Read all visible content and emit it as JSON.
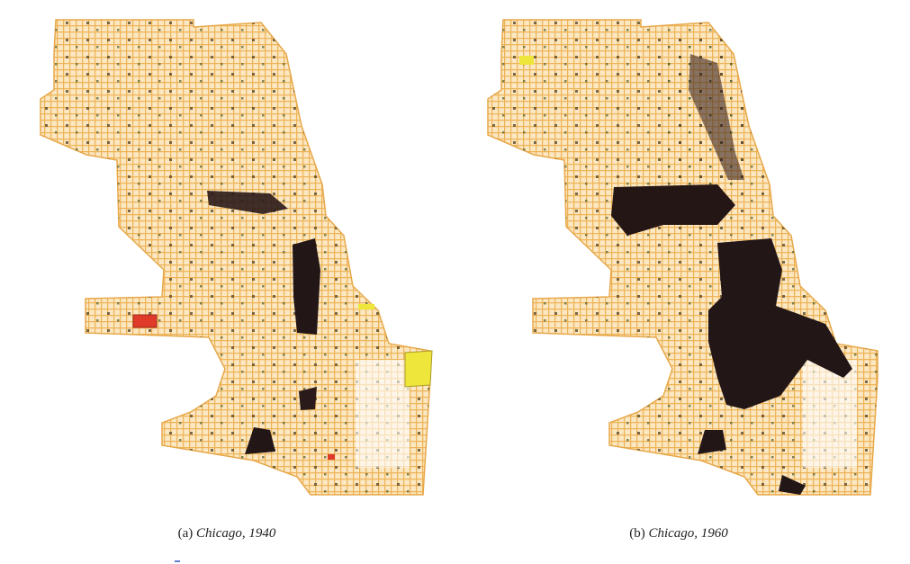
{
  "panels": [
    {
      "label": "(a)",
      "caption": "Chicago, 1940"
    },
    {
      "label": "(b)",
      "caption": "Chicago, 1960"
    }
  ]
}
